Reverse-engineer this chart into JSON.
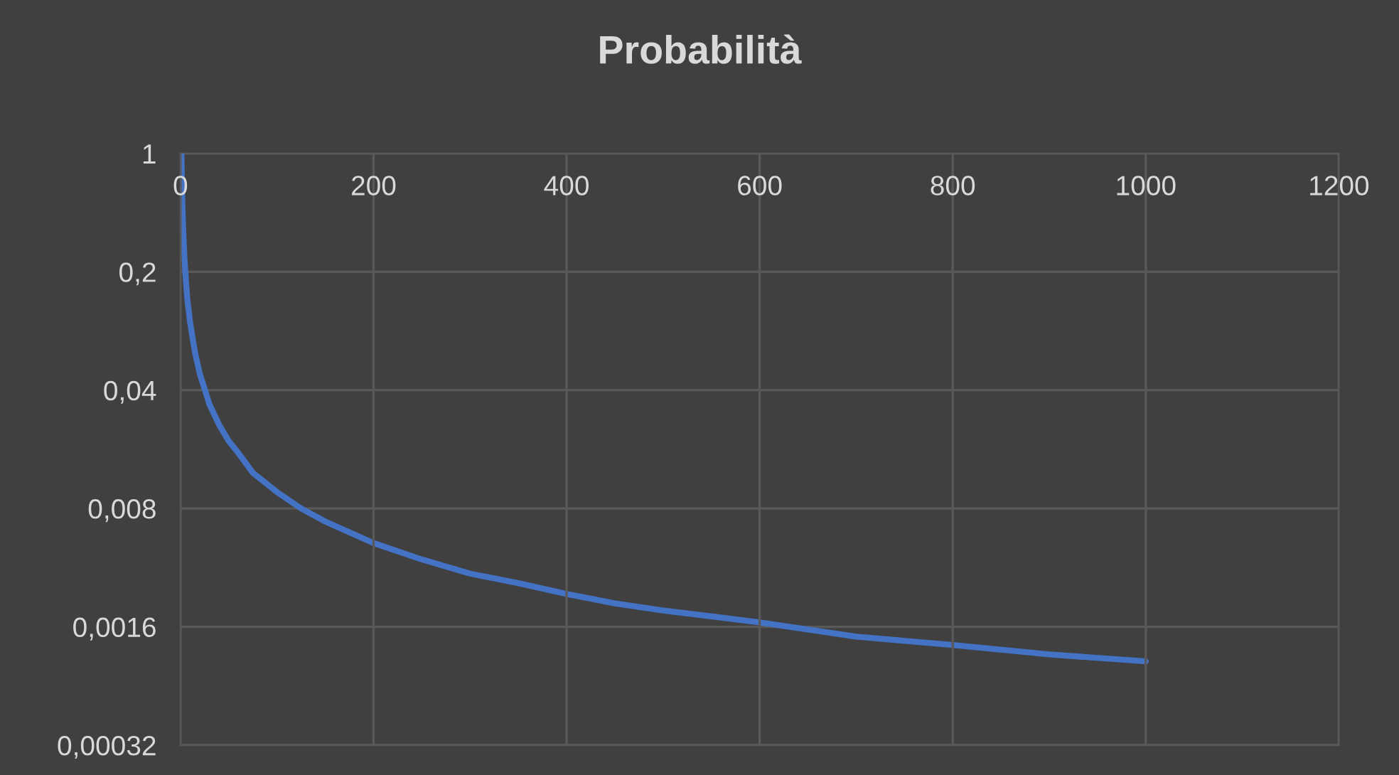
{
  "chart_data": {
    "type": "line",
    "title": "Probabilità",
    "x": [
      1,
      1.5,
      2,
      3,
      4,
      5,
      7,
      10,
      15,
      20,
      30,
      40,
      50,
      60,
      75,
      100,
      125,
      150,
      200,
      250,
      300,
      350,
      400,
      450,
      500,
      600,
      700,
      800,
      900,
      1000
    ],
    "series": [
      {
        "color": "#4472c4",
        "values": [
          1,
          0.67,
          0.5,
          0.33,
          0.25,
          0.2,
          0.14,
          0.1,
          0.067,
          0.05,
          0.033,
          0.025,
          0.02,
          0.017,
          0.013,
          0.01,
          0.008,
          0.0067,
          0.005,
          0.004,
          0.0033,
          0.0029,
          0.0025,
          0.0022,
          0.002,
          0.0017,
          0.0014,
          0.00125,
          0.0011,
          0.001
        ]
      }
    ],
    "log": "y",
    "xlim": [
      0,
      1200
    ],
    "xticks": [
      0,
      200,
      400,
      600,
      800,
      1000,
      1200
    ],
    "ylim": [
      0.00032,
      1
    ],
    "yticks": [
      {
        "value": 0.00032,
        "label": "0,00032"
      },
      {
        "value": 0.0016,
        "label": "0,0016"
      },
      {
        "value": 0.008,
        "label": "0,008"
      },
      {
        "value": 0.04,
        "label": "0,04"
      },
      {
        "value": 0.2,
        "label": "0,2"
      },
      1
    ],
    "grid": true,
    "marker": "none",
    "line_style": "solid",
    "legend": false
  }
}
